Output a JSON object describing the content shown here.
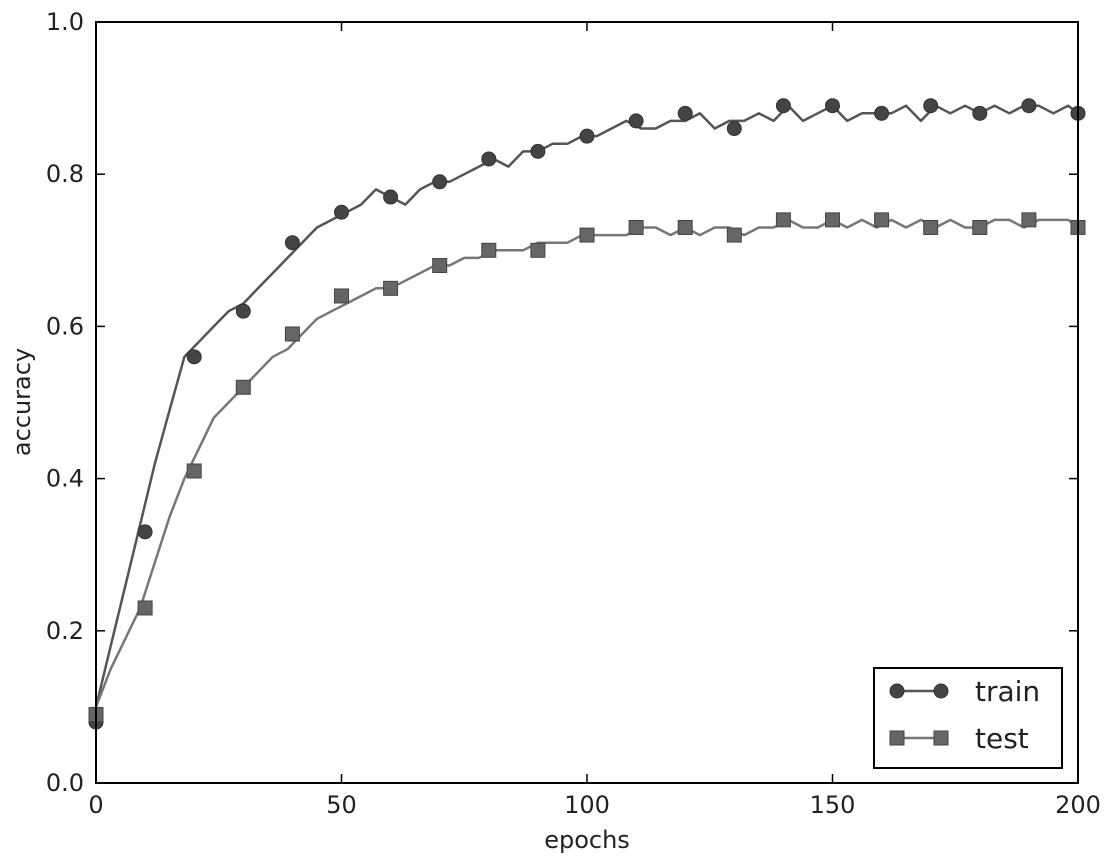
{
  "chart_data": {
    "type": "line",
    "xlabel": "epochs",
    "ylabel": "accuracy",
    "xlim": [
      0,
      200
    ],
    "ylim": [
      0.0,
      1.0
    ],
    "xticks": [
      0,
      50,
      100,
      150,
      200
    ],
    "yticks": [
      0.0,
      0.2,
      0.4,
      0.6,
      0.8,
      1.0
    ],
    "xtick_labels": [
      "0",
      "50",
      "100",
      "150",
      "200"
    ],
    "ytick_labels": [
      "0.0",
      "0.2",
      "0.4",
      "0.6",
      "0.8",
      "1.0"
    ],
    "grid": false,
    "legend_position": "bottom-right",
    "series": [
      {
        "name": "train",
        "marker": "circle",
        "color": "#555555",
        "marker_color": "#444444",
        "marker_points": {
          "x": [
            0,
            10,
            20,
            30,
            40,
            50,
            60,
            70,
            80,
            90,
            100,
            110,
            120,
            130,
            140,
            150,
            160,
            170,
            180,
            190,
            200
          ],
          "y": [
            0.08,
            0.33,
            0.56,
            0.62,
            0.71,
            0.75,
            0.77,
            0.79,
            0.82,
            0.83,
            0.85,
            0.87,
            0.88,
            0.86,
            0.89,
            0.89,
            0.88,
            0.89,
            0.88,
            0.89,
            0.88
          ]
        },
        "line": {
          "x": [
            0,
            3,
            6,
            9,
            12,
            15,
            18,
            21,
            24,
            27,
            30,
            33,
            36,
            39,
            42,
            45,
            48,
            51,
            54,
            57,
            60,
            63,
            66,
            69,
            72,
            75,
            78,
            81,
            84,
            87,
            90,
            93,
            96,
            99,
            102,
            105,
            108,
            111,
            114,
            117,
            120,
            123,
            126,
            129,
            132,
            135,
            138,
            141,
            144,
            147,
            150,
            153,
            156,
            159,
            162,
            165,
            168,
            171,
            174,
            177,
            180,
            183,
            186,
            189,
            192,
            195,
            198,
            200
          ],
          "y": [
            0.1,
            0.18,
            0.26,
            0.34,
            0.42,
            0.49,
            0.56,
            0.58,
            0.6,
            0.62,
            0.63,
            0.65,
            0.67,
            0.69,
            0.71,
            0.73,
            0.74,
            0.75,
            0.76,
            0.78,
            0.77,
            0.76,
            0.78,
            0.79,
            0.79,
            0.8,
            0.81,
            0.82,
            0.81,
            0.83,
            0.83,
            0.84,
            0.84,
            0.85,
            0.85,
            0.86,
            0.87,
            0.86,
            0.86,
            0.87,
            0.87,
            0.88,
            0.86,
            0.87,
            0.87,
            0.88,
            0.87,
            0.89,
            0.87,
            0.88,
            0.89,
            0.87,
            0.88,
            0.88,
            0.88,
            0.89,
            0.87,
            0.89,
            0.88,
            0.89,
            0.88,
            0.89,
            0.88,
            0.89,
            0.89,
            0.88,
            0.89,
            0.88
          ]
        }
      },
      {
        "name": "test",
        "marker": "square",
        "color": "#777777",
        "marker_color": "#666666",
        "marker_points": {
          "x": [
            0,
            10,
            20,
            30,
            40,
            50,
            60,
            70,
            80,
            90,
            100,
            110,
            120,
            130,
            140,
            150,
            160,
            170,
            180,
            190,
            200
          ],
          "y": [
            0.09,
            0.23,
            0.41,
            0.52,
            0.59,
            0.64,
            0.65,
            0.68,
            0.7,
            0.7,
            0.72,
            0.73,
            0.73,
            0.72,
            0.74,
            0.74,
            0.74,
            0.73,
            0.73,
            0.74,
            0.73
          ]
        },
        "line": {
          "x": [
            0,
            3,
            6,
            9,
            12,
            15,
            18,
            21,
            24,
            27,
            30,
            33,
            36,
            39,
            42,
            45,
            48,
            51,
            54,
            57,
            60,
            63,
            66,
            69,
            72,
            75,
            78,
            81,
            84,
            87,
            90,
            93,
            96,
            99,
            102,
            105,
            108,
            111,
            114,
            117,
            120,
            123,
            126,
            129,
            132,
            135,
            138,
            141,
            144,
            147,
            150,
            153,
            156,
            159,
            162,
            165,
            168,
            171,
            174,
            177,
            180,
            183,
            186,
            189,
            192,
            195,
            198,
            200
          ],
          "y": [
            0.1,
            0.15,
            0.19,
            0.23,
            0.29,
            0.35,
            0.4,
            0.44,
            0.48,
            0.5,
            0.52,
            0.54,
            0.56,
            0.57,
            0.59,
            0.61,
            0.62,
            0.63,
            0.64,
            0.65,
            0.65,
            0.66,
            0.67,
            0.68,
            0.68,
            0.69,
            0.69,
            0.7,
            0.7,
            0.7,
            0.71,
            0.71,
            0.71,
            0.72,
            0.72,
            0.72,
            0.72,
            0.73,
            0.73,
            0.72,
            0.73,
            0.72,
            0.73,
            0.73,
            0.72,
            0.73,
            0.73,
            0.74,
            0.73,
            0.73,
            0.74,
            0.73,
            0.74,
            0.73,
            0.74,
            0.73,
            0.74,
            0.73,
            0.74,
            0.73,
            0.73,
            0.74,
            0.74,
            0.73,
            0.74,
            0.74,
            0.74,
            0.73
          ]
        }
      }
    ]
  }
}
